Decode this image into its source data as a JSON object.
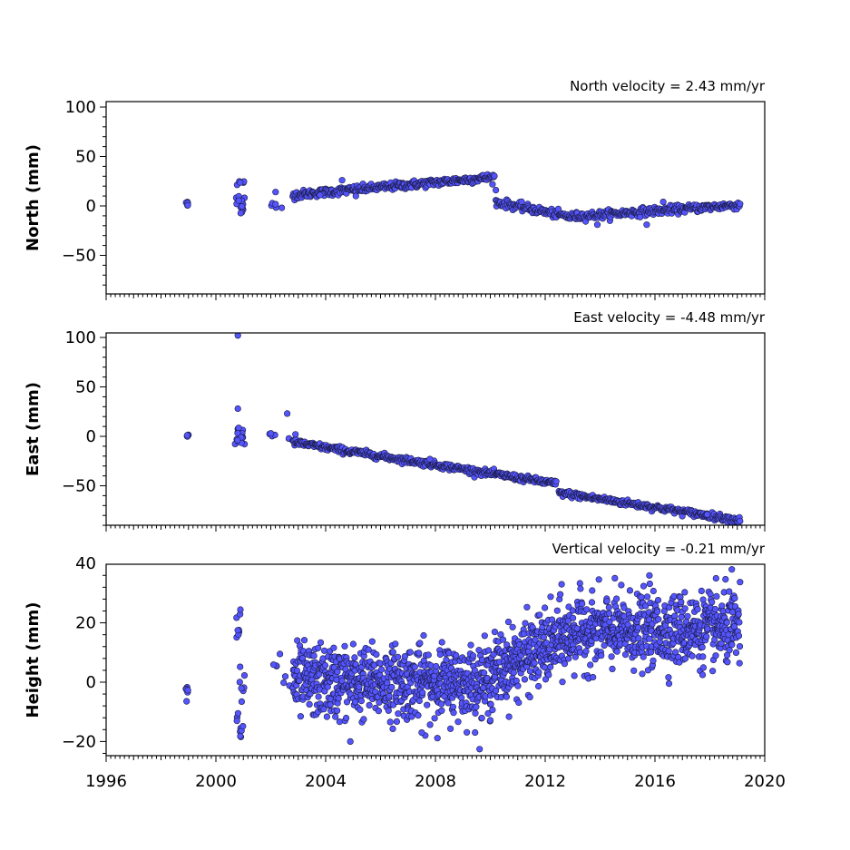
{
  "chart_data": [
    {
      "type": "scatter",
      "panel": "north",
      "ylabel": "North (mm)",
      "annotation": "North velocity = 2.43 mm/yr",
      "xlim": [
        1996,
        2020
      ],
      "ylim": [
        -90,
        105
      ],
      "yticks": [
        -50,
        0,
        50,
        100
      ],
      "ytick_labels": [
        "−50",
        "0",
        "50",
        "100"
      ],
      "x_tick_labels_shown": false,
      "series_color": "#5555ff",
      "clusters": [
        {
          "x": [
            1998.9,
            1999.0
          ],
          "y": [
            -1,
            4
          ],
          "n": 6
        },
        {
          "x": [
            2000.7,
            2001.05
          ],
          "y": [
            -11,
            30
          ],
          "n": 22
        },
        {
          "x": [
            2001.8,
            2002.7
          ],
          "y": [
            -2,
            15
          ],
          "n": 6
        }
      ],
      "segments": [
        {
          "x": [
            2002.8,
            2010.15
          ],
          "y": [
            11,
            29
          ],
          "noise": 2,
          "n": 320
        },
        {
          "x": [
            2010.2,
            2012.9
          ],
          "y": [
            4,
            -11
          ],
          "noise": 2,
          "n": 110
        },
        {
          "x": [
            2012.9,
            2019.1
          ],
          "y": [
            -11,
            1
          ],
          "noise": 2,
          "n": 260
        }
      ],
      "outliers": [
        {
          "x": 2003.8,
          "y": 11
        },
        {
          "x": 2005.1,
          "y": 10
        },
        {
          "x": 2013.9,
          "y": -19
        },
        {
          "x": 2015.7,
          "y": -19
        },
        {
          "x": 2016.3,
          "y": 4
        },
        {
          "x": 2010.2,
          "y": 16
        },
        {
          "x": 2004.6,
          "y": 26
        }
      ]
    },
    {
      "type": "scatter",
      "panel": "east",
      "ylabel": "East (mm)",
      "annotation": "East velocity = -4.48 mm/yr",
      "xlim": [
        1996,
        2020
      ],
      "ylim": [
        -90,
        105
      ],
      "yticks": [
        -50,
        0,
        50,
        100
      ],
      "ytick_labels": [
        "−50",
        "0",
        "50",
        "100"
      ],
      "x_tick_labels_shown": false,
      "series_color": "#5555ff",
      "clusters": [
        {
          "x": [
            1998.9,
            1999.0
          ],
          "y": [
            -1,
            2
          ],
          "n": 6
        },
        {
          "x": [
            2000.7,
            2001.05
          ],
          "y": [
            -8,
            10
          ],
          "n": 20
        },
        {
          "x": [
            2001.8,
            2002.7
          ],
          "y": [
            -6,
            5
          ],
          "n": 6
        }
      ],
      "segments": [
        {
          "x": [
            2002.8,
            2012.4
          ],
          "y": [
            -6,
            -48
          ],
          "noise": 1.6,
          "n": 420
        },
        {
          "x": [
            2012.5,
            2019.1
          ],
          "y": [
            -57,
            -85
          ],
          "noise": 1.6,
          "n": 280
        }
      ],
      "outliers": [
        {
          "x": 2000.8,
          "y": 102
        },
        {
          "x": 2000.8,
          "y": 28
        },
        {
          "x": 2002.6,
          "y": 23
        },
        {
          "x": 2002.9,
          "y": 2
        },
        {
          "x": 2007.8,
          "y": -23
        },
        {
          "x": 2017.9,
          "y": -79
        }
      ]
    },
    {
      "type": "scatter",
      "panel": "height",
      "ylabel": "Height (mm)",
      "annotation": "Vertical velocity = -0.21 mm/yr",
      "xlim": [
        1996,
        2020
      ],
      "ylim": [
        -25,
        40
      ],
      "yticks": [
        -20,
        0,
        20,
        40
      ],
      "ytick_labels": [
        "−20",
        "0",
        "20",
        "40"
      ],
      "xticks": [
        1996,
        2000,
        2004,
        2008,
        2012,
        2016,
        2020
      ],
      "xtick_labels": [
        "1996",
        "2000",
        "2004",
        "2008",
        "2012",
        "2016",
        "2020"
      ],
      "x_tick_labels_shown": true,
      "series_color": "#5555ff",
      "clusters": [
        {
          "x": [
            1998.9,
            1999.0
          ],
          "y": [
            -7,
            0
          ],
          "n": 6
        },
        {
          "x": [
            2000.7,
            2001.05
          ],
          "y": [
            -19,
            27
          ],
          "n": 24
        },
        {
          "x": [
            2001.8,
            2002.7
          ],
          "y": [
            -7,
            10
          ],
          "n": 7
        }
      ],
      "segments": [
        {
          "x": [
            2002.8,
            2010.0
          ],
          "y": [
            0,
            0
          ],
          "noise": 6,
          "n": 700
        },
        {
          "x": [
            2010.0,
            2013.0
          ],
          "y": [
            3,
            16
          ],
          "noise": 6,
          "n": 300
        },
        {
          "x": [
            2013.0,
            2019.1
          ],
          "y": [
            17,
            18
          ],
          "noise": 6,
          "n": 600
        }
      ],
      "outliers": [
        {
          "x": 2004.9,
          "y": -20
        },
        {
          "x": 2007.5,
          "y": -17
        },
        {
          "x": 2018.8,
          "y": 38
        },
        {
          "x": 2015.8,
          "y": 36
        },
        {
          "x": 2012.6,
          "y": 33
        }
      ]
    }
  ]
}
